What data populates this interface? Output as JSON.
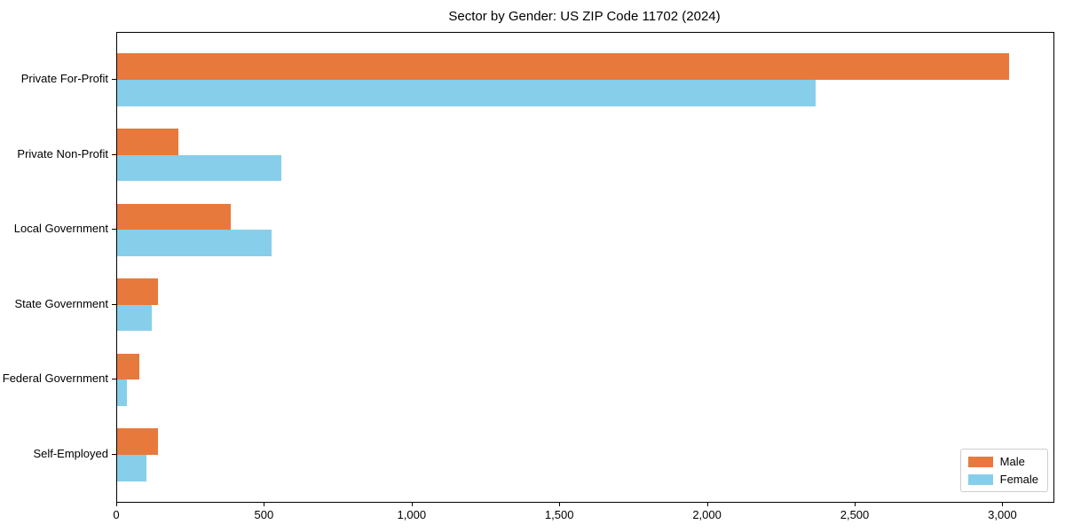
{
  "chart_data": {
    "type": "bar",
    "orientation": "horizontal",
    "title": "Sector by Gender: US ZIP Code 11702 (2024)",
    "categories": [
      "Private For-Profit",
      "Private Non-Profit",
      "Local Government",
      "State Government",
      "Federal Government",
      "Self-Employed"
    ],
    "series": [
      {
        "name": "Male",
        "color": "#e8793c",
        "values": [
          3020,
          206,
          386,
          138,
          74,
          138
        ]
      },
      {
        "name": "Female",
        "color": "#87ceeb",
        "values": [
          2365,
          556,
          524,
          118,
          34,
          100
        ]
      }
    ],
    "xlabel": "",
    "ylabel": "",
    "xlim": [
      0,
      3170
    ],
    "xticks": [
      0,
      500,
      1000,
      1500,
      2000,
      2500,
      3000
    ],
    "xtick_labels": [
      "0",
      "500",
      "1,000",
      "1,500",
      "2,000",
      "2,500",
      "3,000"
    ],
    "grid": false,
    "legend_position": "lower right",
    "plot_border_color": "#000000",
    "background_color": "#ffffff"
  }
}
